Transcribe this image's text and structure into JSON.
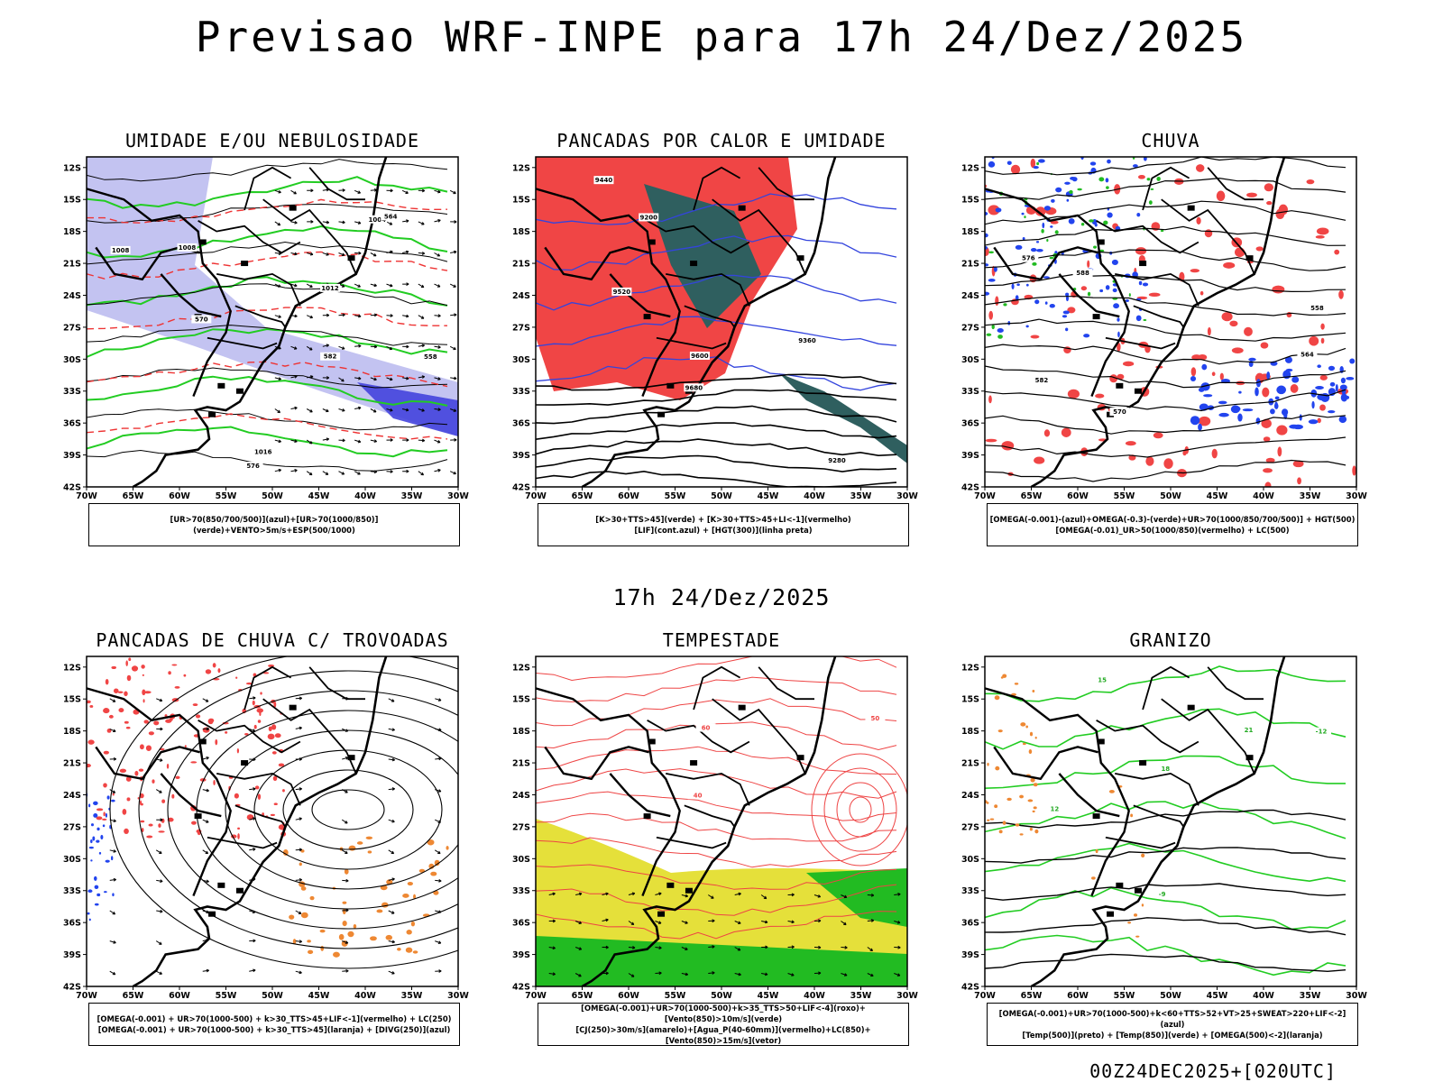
{
  "header": {
    "title": "Previsao WRF-INPE  para 17h 24/Dez/2025"
  },
  "mid_label": "17h 24/Dez/2025",
  "footer": "00Z24DEC2025+[020UTC]",
  "axes": {
    "lat_labels": [
      "12S",
      "15S",
      "18S",
      "21S",
      "24S",
      "27S",
      "30S",
      "33S",
      "36S",
      "39S",
      "42S"
    ],
    "lon_labels": [
      "70W",
      "65W",
      "60W",
      "55W",
      "50W",
      "45W",
      "40W",
      "35W",
      "30W"
    ]
  },
  "panels": [
    {
      "id": "umidade",
      "title": "UMIDADE E/OU NEBULOSIDADE",
      "legend": [
        "[UR>70(850/700/500)](azul)+[UR>70(1000/850)](verde)+VENTO>5m/s+ESP(500/1000)"
      ],
      "contour_labels": [
        "1008",
        "1008",
        "1012",
        "1016",
        "1004",
        "576",
        "582",
        "570",
        "564",
        "558"
      ]
    },
    {
      "id": "pancadas-calor",
      "title": "PANCADAS POR CALOR E UMIDADE",
      "legend": [
        "[K>30+TTS>45](verde) + [K>30+TTS>45+LI<-1](vermelho)",
        "[LIF](cont.azul) + [HGT(300)](linha preta)"
      ],
      "contour_labels": [
        "9600",
        "9520",
        "9440",
        "9360",
        "9280",
        "9200",
        "9680"
      ]
    },
    {
      "id": "chuva",
      "title": "CHUVA",
      "legend": [
        "[OMEGA(-0.001)-(azul)+OMEGA(-0.3)-(verde)+UR>70(1000/850/700/500)] + HGT(500)",
        "[OMEGA(-0.01)_UR>50(1000/850)(vermelho) + LC(500)"
      ],
      "contour_labels": [
        "588",
        "582",
        "576",
        "570",
        "564",
        "558"
      ]
    },
    {
      "id": "pancadas-trovoadas",
      "title": "PANCADAS DE CHUVA C/ TROVOADAS",
      "legend": [
        "[OMEGA(-0.001) + UR>70(1000-500) + k>30_TTS>45+LIF<-1](vermelho) + LC(250)",
        "[OMEGA(-0.001) + UR>70(1000-500) + k>30_TTS>45](laranja) + [DIVG(250)](azul)"
      ],
      "contour_labels": []
    },
    {
      "id": "tempestade",
      "title": "TEMPESTADE",
      "legend": [
        "[OMEGA(-0.001)+UR>70(1000-500)+k>35_TTS>50+LIF<-4](roxo)+[Vento(850)>10m/s](verde)",
        "[CJ(250)>30m/s](amarelo)+[Agua_P(40-60mm)](vermelho)+LC(850)+[Vento(850)>15m/s](vetor)"
      ],
      "contour_labels": [
        "40",
        "50",
        "60"
      ]
    },
    {
      "id": "granizo",
      "title": "GRANIZO",
      "legend": [
        "[OMEGA(-0.001)+UR>70(1000-500)+k<60+TTS>52+VT>25+SWEAT>220+LIF<-2](azul)",
        "[Temp(500)](preto) + [Temp(850)](verde) + [OMEGA(500)<-2](laranja)"
      ],
      "contour_labels": [
        "12",
        "15",
        "18",
        "21",
        "-9",
        "-12"
      ]
    }
  ]
}
